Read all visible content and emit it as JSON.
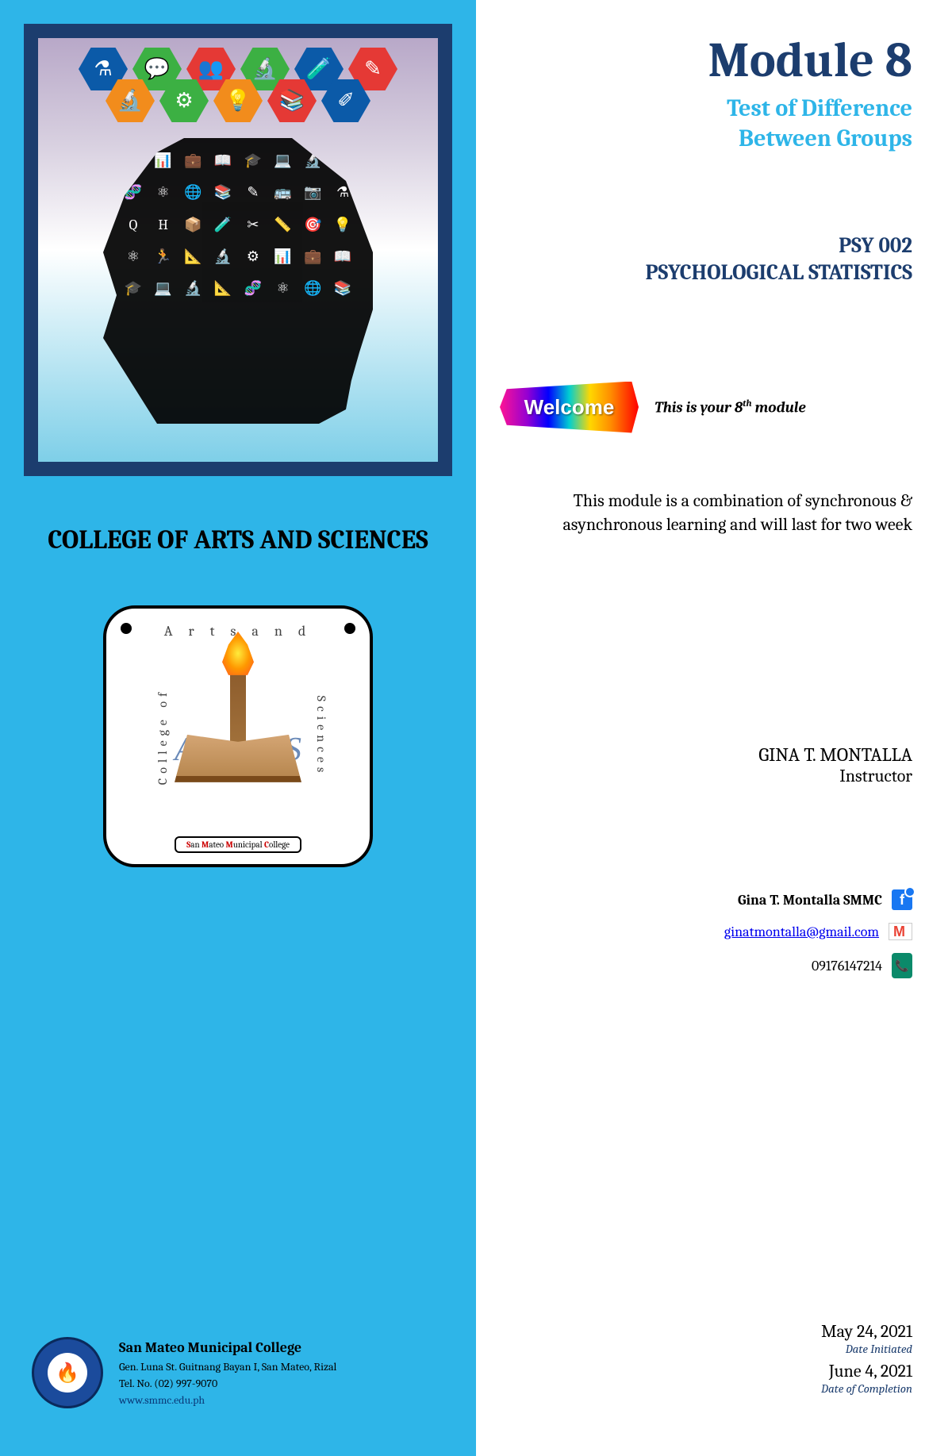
{
  "left": {
    "hexColors": [
      "#0b5aa8",
      "#3cb043",
      "#e53935",
      "#3cb043",
      "#0b5aa8",
      "#e53935",
      "#f28c1c",
      "#3cb043",
      "#f28c1c",
      "#e53935",
      "#0b5aa8"
    ],
    "hexIcons": [
      "⚗",
      "💬",
      "👥",
      "🔬",
      "🧪",
      "✎",
      "🔬",
      "⚙",
      "💡",
      "📚",
      "✐"
    ],
    "collegeHeading": "COLLEGE OF ARTS AND SCIENCES",
    "logo": {
      "top": "A r t s   a n d",
      "left": "College of",
      "right": "Sciences",
      "bottomPrefix1": "S",
      "bottomWord1": "an ",
      "bottomPrefix2": "M",
      "bottomWord2": "ateo ",
      "bottomPrefix3": "M",
      "bottomWord3": "unicipal ",
      "bottomPrefix4": "C",
      "bottomWord4": "ollege"
    },
    "footer": {
      "name": "San Mateo Municipal College",
      "address": "Gen. Luna St. Guitnang Bayan I, San Mateo, Rizal",
      "tel": "Tel. No. (02) 997-9070",
      "web": "www.smmc.edu.ph"
    }
  },
  "right": {
    "moduleTitle": "Module 8",
    "subtitle1": "Test of Difference",
    "subtitle2": "Between Groups",
    "course1": "PSY 002",
    "course2": "PSYCHOLOGICAL STATISTICS",
    "welcomeBadge": "Welcome",
    "welcomeTextPre": "This is your 8",
    "welcomeTextSup": "th",
    "welcomeTextPost": " module",
    "description": "This module is a combination of synchronous & asynchronous learning and will last for two week",
    "instructorName": "GINA T. MONTALLA",
    "instructorRole": "Instructor",
    "contact": {
      "fbName": "Gina T. Montalla SMMC",
      "email": "ginatmontalla@gmail.com",
      "phone": "09176147214"
    },
    "dates": {
      "initiated": "May 24, 2021",
      "initiatedLabel": "Date Initiated",
      "completed": "June 4, 2021",
      "completedLabel": "Date of Completion"
    }
  },
  "colors": {
    "leftBg": "#2eb5e8",
    "darkBlue": "#1c3d6e",
    "accentBlue": "#2eb5e8"
  }
}
